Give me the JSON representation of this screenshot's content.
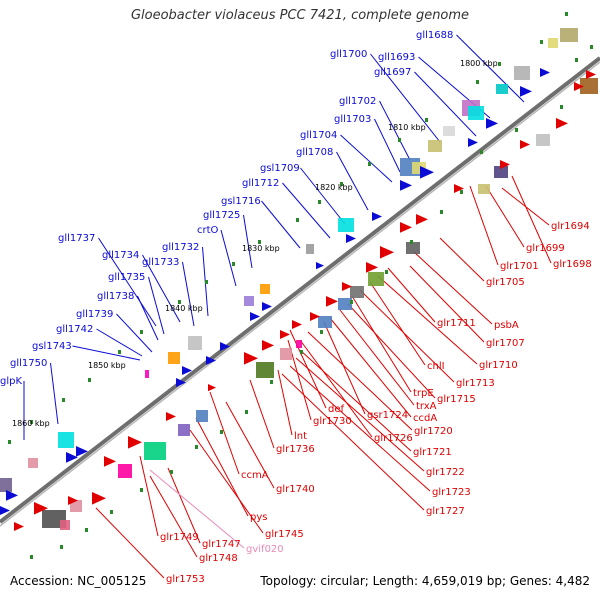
{
  "title": "Gloeobacter violaceus PCC 7421, complete genome",
  "accession": "Accession: NC_005125",
  "summary": "Topology: circular; Length: 4,659,019 bp; Genes: 4,482",
  "colors": {
    "forward": "#0b0bd6",
    "reverse": "#e10000",
    "pseudo": "#e98ab8",
    "backbone": "#7a7a7a"
  },
  "kbp_ticks": [
    "1800 kbp",
    "1810 kbp",
    "1820 kbp",
    "1830 kbp",
    "1840 kbp",
    "1850 kbp",
    "1860 kbp"
  ],
  "forward_labels": [
    "gll1688",
    "gll1693",
    "gll1697",
    "gll1700",
    "gll1702",
    "gll1703",
    "gll1704",
    "gll1708",
    "gsl1709",
    "gll1712",
    "gsl1716",
    "gll1725",
    "crtO",
    "gll1732",
    "gll1733",
    "gll1734",
    "gll1737",
    "gll1735",
    "gll1738",
    "gll1739",
    "gll1742",
    "gsl1743",
    "gll1750",
    "glpK"
  ],
  "reverse_labels": [
    "glr1694",
    "glr1699",
    "glr1698",
    "glr1701",
    "glr1705",
    "psbA",
    "glr1707",
    "glr1711",
    "glr1710",
    "chlI",
    "glr1713",
    "trpE",
    "glr1715",
    "trxA",
    "ccdA",
    "def",
    "gsr1724",
    "glr1730",
    "glr1720",
    "glr1726",
    "lnt",
    "glr1721",
    "glr1736",
    "glr1722",
    "ccmA",
    "glr1723",
    "glr1740",
    "glr1727",
    "pys",
    "glr1745",
    "glr1749",
    "glr1747",
    "gvif020",
    "glr1748",
    "glr1753"
  ]
}
